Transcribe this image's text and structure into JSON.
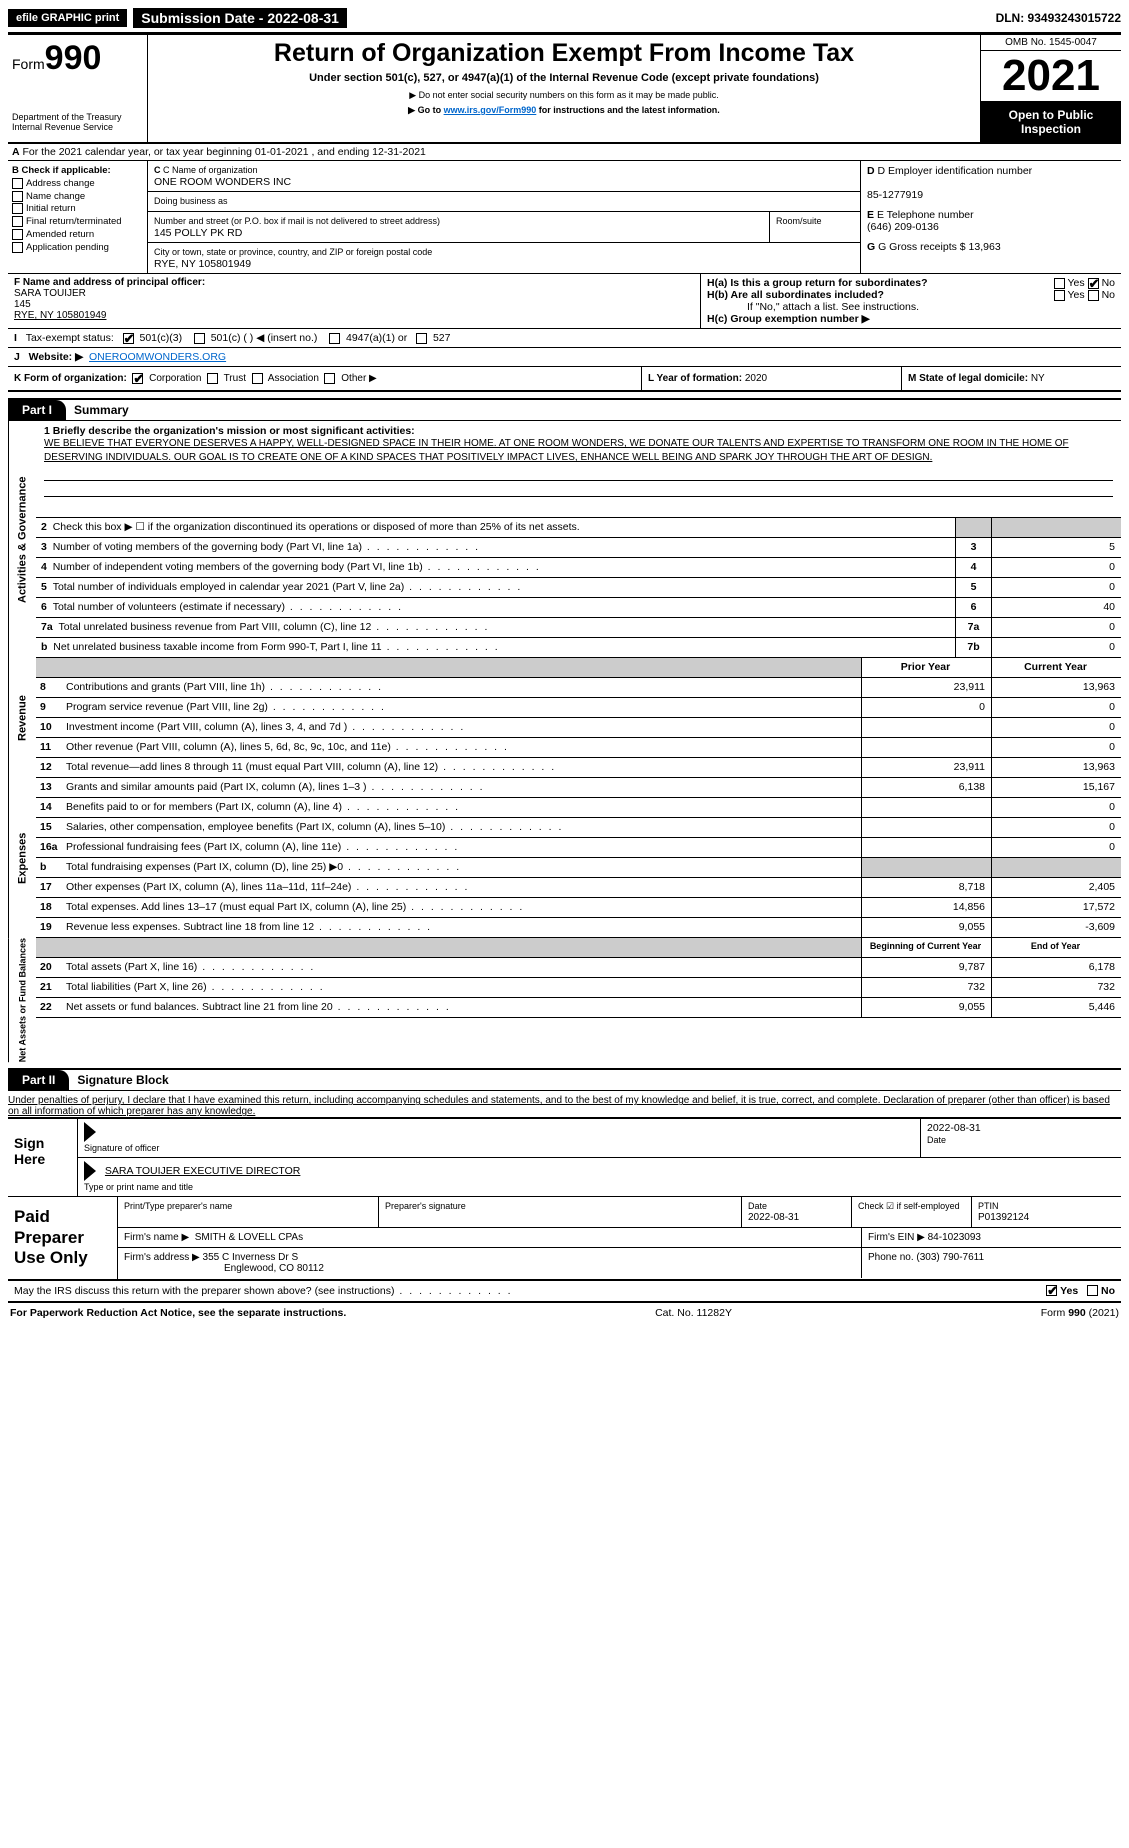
{
  "top": {
    "efile": "efile GRAPHIC print",
    "submission_label": "Submission Date - 2022-08-31",
    "dln": "DLN: 93493243015722"
  },
  "header": {
    "form_prefix": "Form",
    "form_number": "990",
    "title": "Return of Organization Exempt From Income Tax",
    "subtitle": "Under section 501(c), 527, or 4947(a)(1) of the Internal Revenue Code (except private foundations)",
    "note1": "▶ Do not enter social security numbers on this form as it may be made public.",
    "note2_prefix": "▶ Go to ",
    "note2_link": "www.irs.gov/Form990",
    "note2_suffix": " for instructions and the latest information.",
    "dept": "Department of the Treasury",
    "irs": "Internal Revenue Service",
    "omb": "OMB No. 1545-0047",
    "year": "2021",
    "open": "Open to Public Inspection"
  },
  "section_a": {
    "text": "For the 2021 calendar year, or tax year beginning 01-01-2021    , and ending 12-31-2021"
  },
  "section_b": {
    "label": "B Check if applicable:",
    "items": [
      "Address change",
      "Name change",
      "Initial return",
      "Final return/terminated",
      "Amended return",
      "Application pending"
    ]
  },
  "section_c": {
    "name_label": "C Name of organization",
    "name": "ONE ROOM WONDERS INC",
    "dba_label": "Doing business as",
    "dba": "",
    "addr_label": "Number and street (or P.O. box if mail is not delivered to street address)",
    "room_label": "Room/suite",
    "addr": "145 POLLY PK RD",
    "city_label": "City or town, state or province, country, and ZIP or foreign postal code",
    "city": "RYE, NY 105801949"
  },
  "section_d": {
    "label": "D Employer identification number",
    "value": "85-1277919"
  },
  "section_e": {
    "label": "E Telephone number",
    "value": "(646) 209-0136"
  },
  "section_g": {
    "label": "G Gross receipts $",
    "value": "13,963"
  },
  "section_f": {
    "label": "F  Name and address of principal officer:",
    "name": "SARA TOUIJER",
    "addr1": "145",
    "addr2": "RYE, NY 105801949"
  },
  "section_h": {
    "ha": "H(a)  Is this a group return for subordinates?",
    "hb": "H(b)  Are all subordinates included?",
    "hb_note": "If \"No,\" attach a list. See instructions.",
    "hc": "H(c)  Group exemption number ▶",
    "yes": "Yes",
    "no": "No"
  },
  "section_i": {
    "label": "Tax-exempt status:",
    "opts": [
      "501(c)(3)",
      "501(c) (  ) ◀ (insert no.)",
      "4947(a)(1) or",
      "527"
    ]
  },
  "section_j": {
    "label": "Website: ▶",
    "value": "ONEROOMWONDERS.ORG"
  },
  "section_k": {
    "label": "K Form of organization:",
    "opts": [
      "Corporation",
      "Trust",
      "Association",
      "Other ▶"
    ]
  },
  "section_l": {
    "label": "L Year of formation:",
    "value": "2020"
  },
  "section_m": {
    "label": "M State of legal domicile:",
    "value": "NY"
  },
  "part1": {
    "tab": "Part I",
    "title": "Summary",
    "vlabels": {
      "ag": "Activities & Governance",
      "rev": "Revenue",
      "exp": "Expenses",
      "na": "Net Assets or Fund Balances"
    },
    "hdr_prior": "Prior Year",
    "hdr_current": "Current Year",
    "hdr_begin": "Beginning of Current Year",
    "hdr_end": "End of Year",
    "line1_label": "1  Briefly describe the organization's mission or most significant activities:",
    "mission": "WE BELIEVE THAT EVERYONE DESERVES A HAPPY, WELL-DESIGNED SPACE IN THEIR HOME. AT ONE ROOM WONDERS, WE DONATE OUR TALENTS AND EXPERTISE TO TRANSFORM ONE ROOM IN THE HOME OF DESERVING INDIVIDUALS. OUR GOAL IS TO CREATE ONE OF A KIND SPACES THAT POSITIVELY IMPACT LIVES, ENHANCE WELL BEING AND SPARK JOY THROUGH THE ART OF DESIGN.",
    "line2": "Check this box ▶ ☐  if the organization discontinued its operations or disposed of more than 25% of its net assets.",
    "lines_ag": [
      {
        "n": "3",
        "desc": "Number of voting members of the governing body (Part VI, line 1a)",
        "box": "3",
        "val": "5"
      },
      {
        "n": "4",
        "desc": "Number of independent voting members of the governing body (Part VI, line 1b)",
        "box": "4",
        "val": "0"
      },
      {
        "n": "5",
        "desc": "Total number of individuals employed in calendar year 2021 (Part V, line 2a)",
        "box": "5",
        "val": "0"
      },
      {
        "n": "6",
        "desc": "Total number of volunteers (estimate if necessary)",
        "box": "6",
        "val": "40"
      },
      {
        "n": "7a",
        "desc": "Total unrelated business revenue from Part VIII, column (C), line 12",
        "box": "7a",
        "val": "0"
      },
      {
        "n": "b",
        "desc": "Net unrelated business taxable income from Form 990-T, Part I, line 11",
        "box": "7b",
        "val": "0"
      }
    ],
    "lines_rev": [
      {
        "n": "8",
        "desc": "Contributions and grants (Part VIII, line 1h)",
        "prior": "23,911",
        "cur": "13,963"
      },
      {
        "n": "9",
        "desc": "Program service revenue (Part VIII, line 2g)",
        "prior": "0",
        "cur": "0"
      },
      {
        "n": "10",
        "desc": "Investment income (Part VIII, column (A), lines 3, 4, and 7d )",
        "prior": "",
        "cur": "0"
      },
      {
        "n": "11",
        "desc": "Other revenue (Part VIII, column (A), lines 5, 6d, 8c, 9c, 10c, and 11e)",
        "prior": "",
        "cur": "0"
      },
      {
        "n": "12",
        "desc": "Total revenue—add lines 8 through 11 (must equal Part VIII, column (A), line 12)",
        "prior": "23,911",
        "cur": "13,963"
      }
    ],
    "lines_exp": [
      {
        "n": "13",
        "desc": "Grants and similar amounts paid (Part IX, column (A), lines 1–3 )",
        "prior": "6,138",
        "cur": "15,167"
      },
      {
        "n": "14",
        "desc": "Benefits paid to or for members (Part IX, column (A), line 4)",
        "prior": "",
        "cur": "0"
      },
      {
        "n": "15",
        "desc": "Salaries, other compensation, employee benefits (Part IX, column (A), lines 5–10)",
        "prior": "",
        "cur": "0"
      },
      {
        "n": "16a",
        "desc": "Professional fundraising fees (Part IX, column (A), line 11e)",
        "prior": "",
        "cur": "0"
      },
      {
        "n": "b",
        "desc": "Total fundraising expenses (Part IX, column (D), line 25) ▶0",
        "prior": "GRAY",
        "cur": "GRAY"
      },
      {
        "n": "17",
        "desc": "Other expenses (Part IX, column (A), lines 11a–11d, 11f–24e)",
        "prior": "8,718",
        "cur": "2,405"
      },
      {
        "n": "18",
        "desc": "Total expenses. Add lines 13–17 (must equal Part IX, column (A), line 25)",
        "prior": "14,856",
        "cur": "17,572"
      },
      {
        "n": "19",
        "desc": "Revenue less expenses. Subtract line 18 from line 12",
        "prior": "9,055",
        "cur": "-3,609"
      }
    ],
    "lines_na": [
      {
        "n": "20",
        "desc": "Total assets (Part X, line 16)",
        "prior": "9,787",
        "cur": "6,178"
      },
      {
        "n": "21",
        "desc": "Total liabilities (Part X, line 26)",
        "prior": "732",
        "cur": "732"
      },
      {
        "n": "22",
        "desc": "Net assets or fund balances. Subtract line 21 from line 20",
        "prior": "9,055",
        "cur": "5,446"
      }
    ]
  },
  "part2": {
    "tab": "Part II",
    "title": "Signature Block",
    "penalty": "Under penalties of perjury, I declare that I have examined this return, including accompanying schedules and statements, and to the best of my knowledge and belief, it is true, correct, and complete. Declaration of preparer (other than officer) is based on all information of which preparer has any knowledge."
  },
  "sign": {
    "label": "Sign Here",
    "sig_label": "Signature of officer",
    "date_label": "Date",
    "date": "2022-08-31",
    "name": "SARA TOUIJER  EXECUTIVE DIRECTOR",
    "name_label": "Type or print name and title"
  },
  "paid": {
    "label": "Paid Preparer Use Only",
    "h_name": "Print/Type preparer's name",
    "h_sig": "Preparer's signature",
    "h_date": "Date",
    "date": "2022-08-31",
    "h_check": "Check ☑ if self-employed",
    "h_ptin": "PTIN",
    "ptin": "P01392124",
    "firm_name_l": "Firm's name    ▶",
    "firm_name": "SMITH & LOVELL CPAs",
    "firm_ein_l": "Firm's EIN ▶",
    "firm_ein": "84-1023093",
    "firm_addr_l": "Firm's address ▶",
    "firm_addr1": "355 C Inverness Dr S",
    "firm_addr2": "Englewood, CO  80112",
    "phone_l": "Phone no.",
    "phone": "(303) 790-7611"
  },
  "discuss": {
    "text": "May the IRS discuss this return with the preparer shown above? (see instructions)",
    "yes": "Yes",
    "no": "No"
  },
  "footer": {
    "left": "For Paperwork Reduction Act Notice, see the separate instructions.",
    "mid": "Cat. No. 11282Y",
    "right_prefix": "Form ",
    "right_form": "990",
    "right_suffix": " (2021)"
  }
}
